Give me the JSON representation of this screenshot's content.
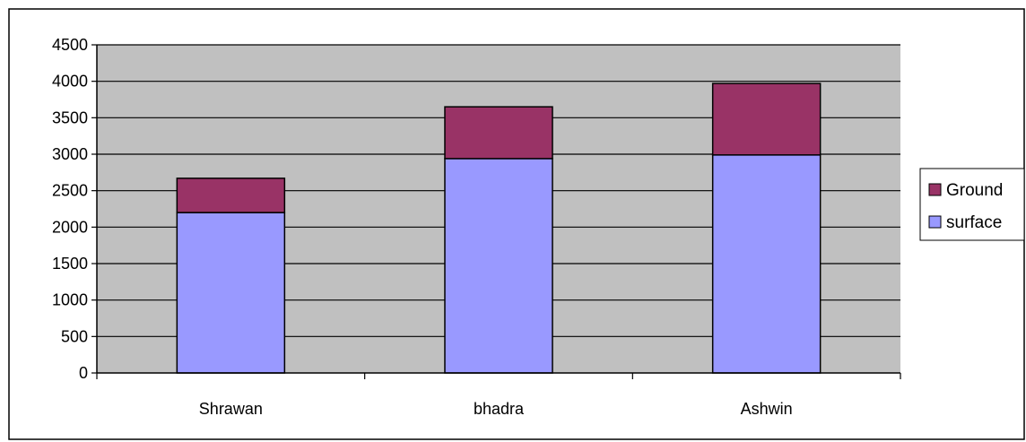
{
  "chart_data": {
    "type": "bar",
    "stacked": true,
    "categories": [
      "Shrawan",
      "bhadra",
      "Ashwin"
    ],
    "series": [
      {
        "name": "surface",
        "values": [
          2200,
          2940,
          2990
        ],
        "color": "#9999FF"
      },
      {
        "name": "Ground",
        "values": [
          470,
          710,
          980
        ],
        "color": "#993366"
      }
    ],
    "legend_order": [
      "Ground",
      "surface"
    ],
    "title": "",
    "xlabel": "",
    "ylabel": "",
    "ylim": [
      0,
      4500
    ],
    "ytick_step": 500,
    "grid": true,
    "legend_position": "right",
    "plot_background": "#C0C0C0"
  }
}
